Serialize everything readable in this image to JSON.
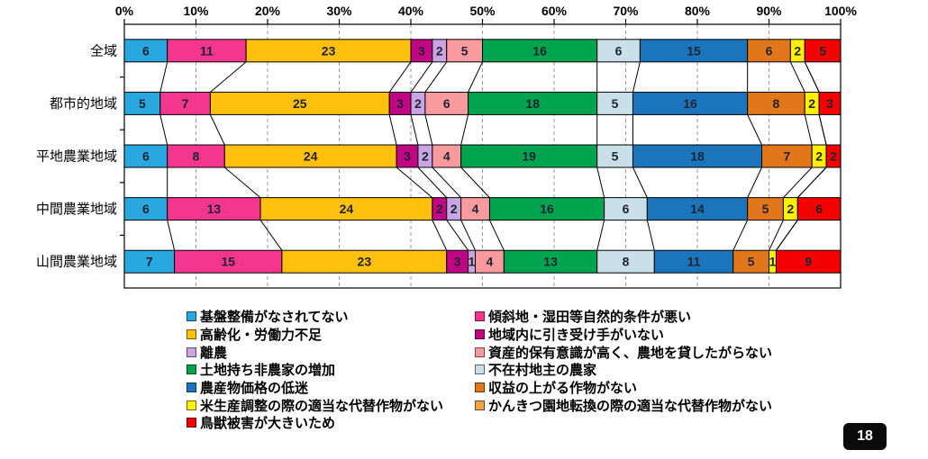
{
  "page_number": "18",
  "chart_data": {
    "type": "bar",
    "subtype": "stacked-100-horizontal",
    "unit": "%",
    "categories": [
      "全域",
      "都市的地域",
      "平地農業地域",
      "中間農業地域",
      "山間農業地域"
    ],
    "axis": {
      "min": 0,
      "max": 100,
      "step": 10,
      "tick_suffix": "%",
      "position": "top",
      "grid": "dashed"
    },
    "series": [
      {
        "name": "基盤整備がなされてない",
        "color": "#29A8E0",
        "values": [
          6,
          5,
          6,
          6,
          7
        ]
      },
      {
        "name": "傾斜地・湿田等自然的条件が悪い",
        "color": "#F5368F",
        "values": [
          11,
          7,
          8,
          13,
          15
        ]
      },
      {
        "name": "高齢化・労働力不足",
        "color": "#FFC10D",
        "values": [
          23,
          25,
          24,
          24,
          23
        ]
      },
      {
        "name": "地域内に引き受け手がいない",
        "color": "#C10585",
        "values": [
          3,
          3,
          3,
          2,
          3
        ]
      },
      {
        "name": "離農",
        "color": "#C9A5E5",
        "values": [
          2,
          2,
          2,
          2,
          1
        ]
      },
      {
        "name": "資産的保有意識が高く、農地を貸したがらない",
        "color": "#F99B9E",
        "values": [
          5,
          6,
          4,
          4,
          4
        ]
      },
      {
        "name": "土地持ち非農家の増加",
        "color": "#00A44F",
        "values": [
          16,
          18,
          19,
          16,
          13
        ]
      },
      {
        "name": "不在村地主の農家",
        "color": "#C9E0E8",
        "values": [
          6,
          5,
          5,
          6,
          8
        ]
      },
      {
        "name": "農産物価格の低迷",
        "color": "#1B75BC",
        "values": [
          15,
          16,
          18,
          14,
          11
        ]
      },
      {
        "name": "収益の上がる作物がない",
        "color": "#E2761B",
        "values": [
          6,
          8,
          7,
          5,
          5
        ]
      },
      {
        "name": "米生産調整の際の適当な代替作物がない",
        "color": "#FFF100",
        "values": [
          2,
          2,
          2,
          2,
          1
        ]
      },
      {
        "name": "かんきつ園地転換の際の適当な代替作物がない",
        "color": "#EFA24E",
        "values": [
          0,
          0,
          0,
          0,
          0
        ]
      },
      {
        "name": "鳥獣被害が大きいため",
        "color": "#F40000",
        "values": [
          5,
          3,
          2,
          6,
          9
        ]
      }
    ],
    "legend": {
      "position": "bottom",
      "columns": 2,
      "order": "row-major"
    }
  }
}
